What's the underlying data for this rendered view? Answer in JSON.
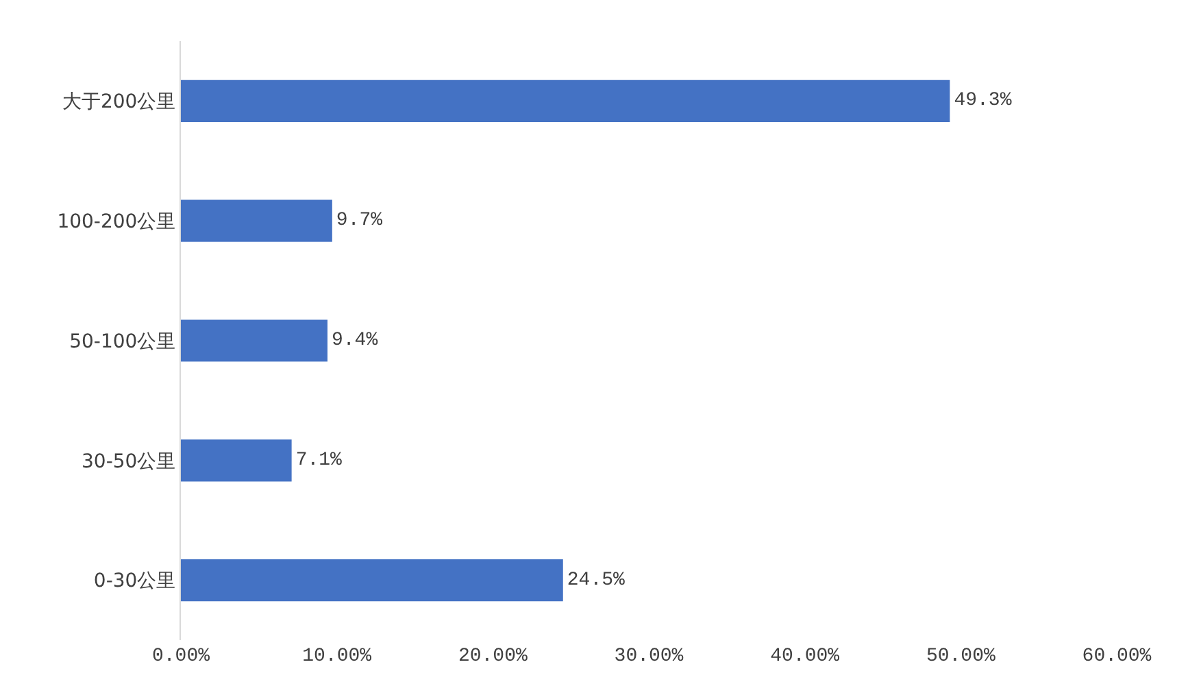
{
  "chart_data": {
    "type": "bar",
    "orientation": "horizontal",
    "categories": [
      "大于200公里",
      "100-200公里",
      "50-100公里",
      "30-50公里",
      "0-30公里"
    ],
    "values": [
      49.3,
      9.7,
      9.4,
      7.1,
      24.5
    ],
    "value_labels": [
      "49.3%",
      "9.7%",
      "9.4%",
      "7.1%",
      "24.5%"
    ],
    "color": "#4472c4",
    "xlim": [
      0,
      60
    ],
    "xticks": [
      {
        "value": 0,
        "label": "0.00%"
      },
      {
        "value": 10,
        "label": "10.00%"
      },
      {
        "value": 20,
        "label": "20.00%"
      },
      {
        "value": 30,
        "label": "30.00%"
      },
      {
        "value": 40,
        "label": "40.00%"
      },
      {
        "value": 50,
        "label": "50.00%"
      },
      {
        "value": 60,
        "label": "60.00%"
      }
    ],
    "grid": false,
    "legend": false
  }
}
